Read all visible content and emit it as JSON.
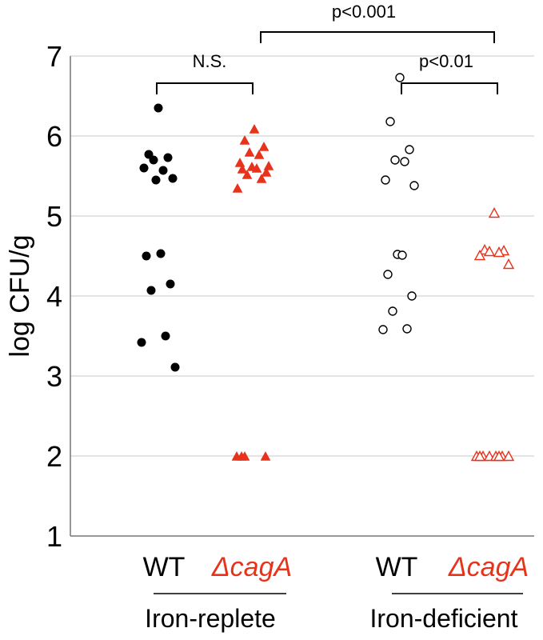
{
  "chart_data": {
    "type": "scatter",
    "ylabel": "log CFU/g",
    "ylim": [
      1,
      7
    ],
    "y_ticks": [
      "1",
      "2",
      "3",
      "4",
      "5",
      "6",
      "7"
    ],
    "grid": "horizontal",
    "groups": [
      "Iron-replete",
      "Iron-deficient"
    ],
    "categories": [
      {
        "label": "WT",
        "group": 0,
        "color": "#000000",
        "italic": false,
        "marker": "filled-circle"
      },
      {
        "label": "ΔcagA",
        "group": 0,
        "color": "#e8331c",
        "italic": true,
        "marker": "filled-triangle"
      },
      {
        "label": "WT",
        "group": 1,
        "color": "#000000",
        "italic": false,
        "marker": "open-circle"
      },
      {
        "label": "ΔcagA",
        "group": 1,
        "color": "#e8331c",
        "italic": true,
        "marker": "open-triangle"
      }
    ],
    "series": [
      {
        "values": [
          6.35,
          5.77,
          5.73,
          5.7,
          5.57,
          5.6,
          5.47,
          5.45,
          4.53,
          4.5,
          4.15,
          4.07,
          3.5,
          3.42,
          3.11
        ]
      },
      {
        "values": [
          6.09,
          5.95,
          5.87,
          5.8,
          5.77,
          5.67,
          5.63,
          5.62,
          5.6,
          5.59,
          5.55,
          5.52,
          5.47,
          5.35,
          2.0,
          2.0,
          2.0,
          2.0
        ]
      },
      {
        "values": [
          6.73,
          6.18,
          5.83,
          5.7,
          5.68,
          5.45,
          5.38,
          4.52,
          4.51,
          4.27,
          4.0,
          3.81,
          3.59,
          3.58
        ]
      },
      {
        "values": [
          5.04,
          4.58,
          4.57,
          4.56,
          4.55,
          4.51,
          4.4,
          2.0,
          2.0,
          2.0,
          2.0,
          2.0,
          2.0,
          2.0,
          2.0
        ]
      }
    ],
    "annotations": [
      {
        "text": "N.S.",
        "from": 0,
        "to": 1
      },
      {
        "text": "p<0.01",
        "from": 2,
        "to": 3
      },
      {
        "text": "p<0.001",
        "from": 1,
        "to": 3
      }
    ]
  }
}
